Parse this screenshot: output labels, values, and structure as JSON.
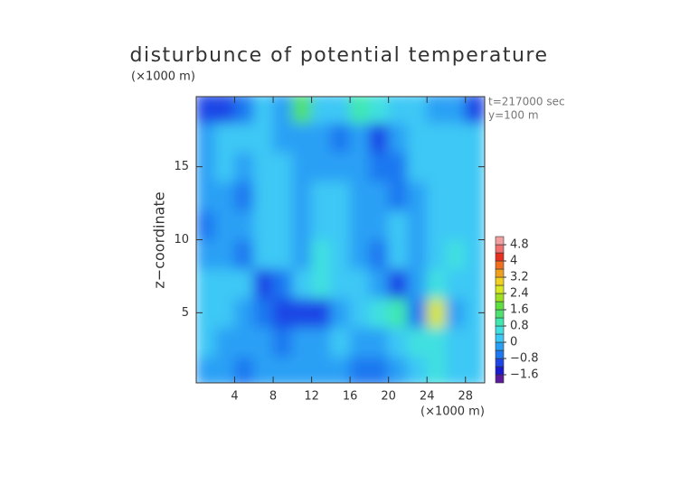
{
  "chart_data": {
    "type": "heatmap",
    "title": "disturbunce of potential temperature",
    "y_unit": "(×1000 m)",
    "x_unit": "(×1000 m)",
    "ylabel": "z−coordinate",
    "annotations": [
      "t=217000 sec",
      "y=100 m"
    ],
    "xlim": [
      0,
      30
    ],
    "ylim": [
      0.2,
      19.8
    ],
    "xticks": [
      4,
      8,
      12,
      16,
      20,
      24,
      28
    ],
    "yticks": [
      5,
      10,
      15
    ],
    "x": [
      1,
      3,
      5,
      7,
      9,
      11,
      13,
      15,
      17,
      19,
      21,
      23,
      25,
      27,
      29
    ],
    "y": [
      1,
      3,
      5,
      7,
      9,
      11,
      13,
      15,
      17,
      19
    ],
    "z": [
      [
        -0.2,
        -0.4,
        -0.6,
        -0.3,
        -0.2,
        -0.4,
        -0.3,
        -0.2,
        -0.6,
        -0.7,
        -0.4,
        0.2,
        0.6,
        0.4,
        0.2
      ],
      [
        0.1,
        -0.3,
        -0.4,
        -0.2,
        -0.5,
        -0.3,
        -0.2,
        0.1,
        -0.3,
        -0.2,
        0.4,
        0.8,
        0.6,
        0.3,
        0.1
      ],
      [
        0.2,
        0.0,
        -0.4,
        -0.7,
        -0.9,
        -1.0,
        -1.2,
        -0.4,
        0.2,
        0.6,
        1.0,
        -0.6,
        2.8,
        -0.4,
        0.2
      ],
      [
        0.0,
        0.2,
        0.3,
        -0.8,
        -0.5,
        0.1,
        0.8,
        0.3,
        0.1,
        -0.2,
        -0.8,
        -0.4,
        0.6,
        0.4,
        0.3
      ],
      [
        -0.4,
        -0.2,
        -0.6,
        0.2,
        0.3,
        -0.3,
        0.5,
        0.1,
        -0.3,
        -0.7,
        0.2,
        -0.3,
        0.0,
        0.5,
        0.2
      ],
      [
        -0.6,
        -0.3,
        -0.4,
        0.4,
        0.2,
        -0.4,
        0.3,
        0.2,
        -0.2,
        -0.4,
        0.3,
        -0.2,
        0.2,
        0.3,
        0.2
      ],
      [
        -0.3,
        -0.2,
        -0.5,
        0.3,
        0.4,
        -0.3,
        0.2,
        0.1,
        -0.1,
        -0.4,
        -0.6,
        -0.3,
        0.3,
        0.2,
        0.3
      ],
      [
        -0.2,
        0.1,
        -0.3,
        0.2,
        0.3,
        -0.2,
        -0.4,
        -0.3,
        -0.3,
        -0.6,
        -0.5,
        0.2,
        0.4,
        0.1,
        0.2
      ],
      [
        -0.3,
        0.0,
        0.2,
        0.1,
        -0.2,
        -0.3,
        -0.2,
        -0.5,
        -0.4,
        -0.8,
        -0.4,
        0.3,
        0.2,
        0.3,
        0.0
      ],
      [
        -0.8,
        -0.9,
        -0.7,
        0.3,
        -0.3,
        1.4,
        0.1,
        0.3,
        0.9,
        0.5,
        0.3,
        0.1,
        -0.3,
        -0.4,
        -0.9
      ]
    ],
    "colorbar": {
      "lim": [
        -2,
        5.2
      ],
      "colors": [
        "#5a1a9a",
        "#1a1ad0",
        "#1e46e6",
        "#1e78f0",
        "#2aa0f5",
        "#3cc8f5",
        "#40e0e0",
        "#40e8b0",
        "#50e070",
        "#60e040",
        "#a0e020",
        "#d8e820",
        "#f0d020",
        "#f0a020",
        "#f07020",
        "#e83020",
        "#f07070",
        "#f0a0a0"
      ],
      "ticks": [
        {
          "value": -1.6,
          "label": "−1.6"
        },
        {
          "value": -0.8,
          "label": "−0.8"
        },
        0,
        0.8,
        1.6,
        2.4,
        3.2,
        4,
        4.8
      ]
    }
  }
}
